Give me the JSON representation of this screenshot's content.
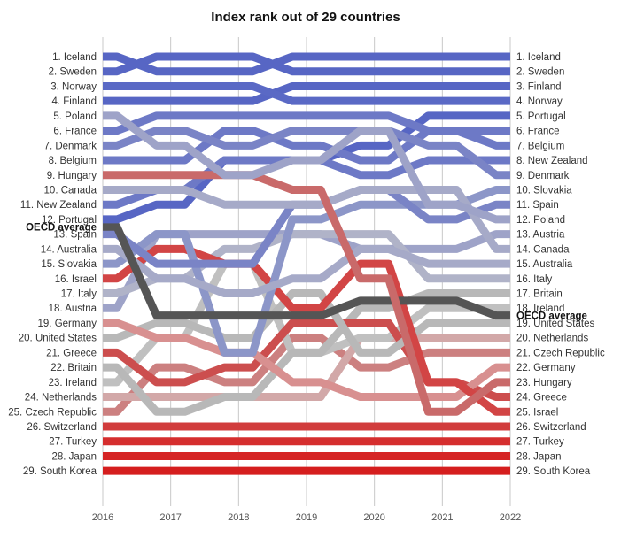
{
  "chart_data": {
    "type": "line",
    "subtype": "bump",
    "title": "Index rank out of 29 countries",
    "x": [
      "2016",
      "2017",
      "2018",
      "2019",
      "2020",
      "2021",
      "2022"
    ],
    "y_scale": "rank (1 at top)",
    "grid": "vertical lines at each year",
    "legend": "none; series labeled at both ends",
    "left_labels": [
      "1. Iceland",
      "2. Sweden",
      "3. Norway",
      "4. Finland",
      "5. Poland",
      "6. France",
      "7. Denmark",
      "8. Belgium",
      "9. Hungary",
      "10. Canada",
      "11. New Zealand",
      "12. Portugal",
      "OECD average",
      "13. Spain",
      "14. Australia",
      "15. Slovakia",
      "16. Israel",
      "17. Italy",
      "18. Austria",
      "19. Germany",
      "20. United States",
      "21. Greece",
      "22. Britain",
      "23. Ireland",
      "24. Netherlands",
      "25. Czech Republic",
      "26. Switzerland",
      "27. Turkey",
      "28. Japan",
      "29. South Korea"
    ],
    "right_labels": [
      "1. Iceland",
      "2. Sweden",
      "3. Finland",
      "4. Norway",
      "5. Portugal",
      "6. France",
      "7. Belgium",
      "8. New Zealand",
      "9. Denmark",
      "10. Slovakia",
      "11. Spain",
      "12. Poland",
      "13. Austria",
      "14. Canada",
      "15. Australia",
      "16. Italy",
      "17. Britain",
      "18. Ireland",
      "OECD average",
      "19. United States",
      "20. Netherlands",
      "21. Czech Republic",
      "22. Germany",
      "23. Hungary",
      "24. Greece",
      "25. Israel",
      "26. Switzerland",
      "27. Turkey",
      "28. Japan",
      "29. South Korea"
    ],
    "series": [
      {
        "name": "Iceland",
        "color": "#5766c4",
        "ranks": [
          1,
          2,
          2,
          1,
          1,
          1,
          1
        ]
      },
      {
        "name": "Sweden",
        "color": "#5766c4",
        "ranks": [
          2,
          1,
          1,
          2,
          2,
          2,
          2
        ]
      },
      {
        "name": "Norway",
        "color": "#5a69c5",
        "ranks": [
          3,
          3,
          3,
          4,
          4,
          4,
          4
        ]
      },
      {
        "name": "Finland",
        "color": "#5766c4",
        "ranks": [
          4,
          4,
          4,
          3,
          3,
          3,
          3
        ]
      },
      {
        "name": "Poland",
        "color": "#9ea3c8",
        "ranks": [
          5,
          7,
          9,
          8,
          6,
          11,
          12
        ]
      },
      {
        "name": "France",
        "color": "#6d79c6",
        "ranks": [
          6,
          5,
          5,
          5,
          5,
          6,
          6
        ]
      },
      {
        "name": "Denmark",
        "color": "#7a84c6",
        "ranks": [
          7,
          6,
          7,
          6,
          6,
          7,
          9
        ]
      },
      {
        "name": "Belgium",
        "color": "#6d79c6",
        "ranks": [
          8,
          8,
          6,
          7,
          8,
          6,
          7
        ]
      },
      {
        "name": "Hungary",
        "color": "#c96a6a",
        "ranks": [
          9,
          9,
          9,
          10,
          16,
          25,
          23
        ]
      },
      {
        "name": "Canada",
        "color": "#a6aac8",
        "ranks": [
          10,
          10,
          11,
          11,
          10,
          10,
          14
        ]
      },
      {
        "name": "New Zealand",
        "color": "#6d79c6",
        "ranks": [
          11,
          10,
          8,
          8,
          9,
          8,
          8
        ]
      },
      {
        "name": "Portugal",
        "color": "#5766c4",
        "ranks": [
          12,
          11,
          8,
          8,
          7,
          5,
          5
        ]
      },
      {
        "name": "OECD average",
        "color": "#555555",
        "ranks": [
          12.5,
          18.5,
          18.5,
          18.5,
          17.5,
          17.5,
          18.5
        ]
      },
      {
        "name": "Spain",
        "color": "#7a84c6",
        "ranks": [
          13,
          15,
          15,
          11,
          10,
          12,
          11
        ]
      },
      {
        "name": "Australia",
        "color": "#a6aac8",
        "ranks": [
          14,
          16,
          17,
          16,
          14,
          15,
          15
        ]
      },
      {
        "name": "Slovakia",
        "color": "#8c96c8",
        "ranks": [
          15,
          13,
          21,
          12,
          11,
          11,
          10
        ]
      },
      {
        "name": "Israel",
        "color": "#d24545",
        "ranks": [
          16,
          14,
          15,
          18,
          15,
          23,
          25
        ]
      },
      {
        "name": "Italy",
        "color": "#b0b3c8",
        "ranks": [
          17,
          16,
          14,
          13,
          13,
          16,
          16
        ]
      },
      {
        "name": "Austria",
        "color": "#9ea3c8",
        "ranks": [
          18,
          13,
          13,
          13,
          14,
          14,
          13
        ]
      },
      {
        "name": "Germany",
        "color": "#d89090",
        "ranks": [
          19,
          20,
          21,
          23,
          24,
          24,
          22
        ]
      },
      {
        "name": "United States",
        "color": "#b8b8b8",
        "ranks": [
          20,
          19,
          20,
          17,
          21,
          19,
          19
        ]
      },
      {
        "name": "Greece",
        "color": "#cc4e4e",
        "ranks": [
          21,
          23,
          22,
          19,
          19,
          23,
          24
        ]
      },
      {
        "name": "Britain",
        "color": "#b8b8b8",
        "ranks": [
          22,
          25,
          24,
          21,
          18,
          17,
          17
        ]
      },
      {
        "name": "Ireland",
        "color": "#c0c0c0",
        "ranks": [
          23,
          20,
          15,
          21,
          20,
          18,
          18
        ]
      },
      {
        "name": "Netherlands",
        "color": "#d2a8a8",
        "ranks": [
          24,
          24,
          24,
          24,
          20,
          20,
          20
        ]
      },
      {
        "name": "Czech Republic",
        "color": "#cc8080",
        "ranks": [
          25,
          22,
          23,
          20,
          22,
          21,
          21
        ]
      },
      {
        "name": "Switzerland",
        "color": "#d13c3c",
        "ranks": [
          26,
          26,
          26,
          26,
          26,
          26,
          26
        ]
      },
      {
        "name": "Turkey",
        "color": "#d52e2e",
        "ranks": [
          27,
          27,
          27,
          27,
          27,
          27,
          27
        ]
      },
      {
        "name": "Japan",
        "color": "#d52525",
        "ranks": [
          28,
          28,
          28,
          28,
          28,
          28,
          28
        ]
      },
      {
        "name": "South Korea",
        "color": "#d51e1e",
        "ranks": [
          29,
          29,
          29,
          29,
          29,
          29,
          29
        ]
      }
    ]
  }
}
